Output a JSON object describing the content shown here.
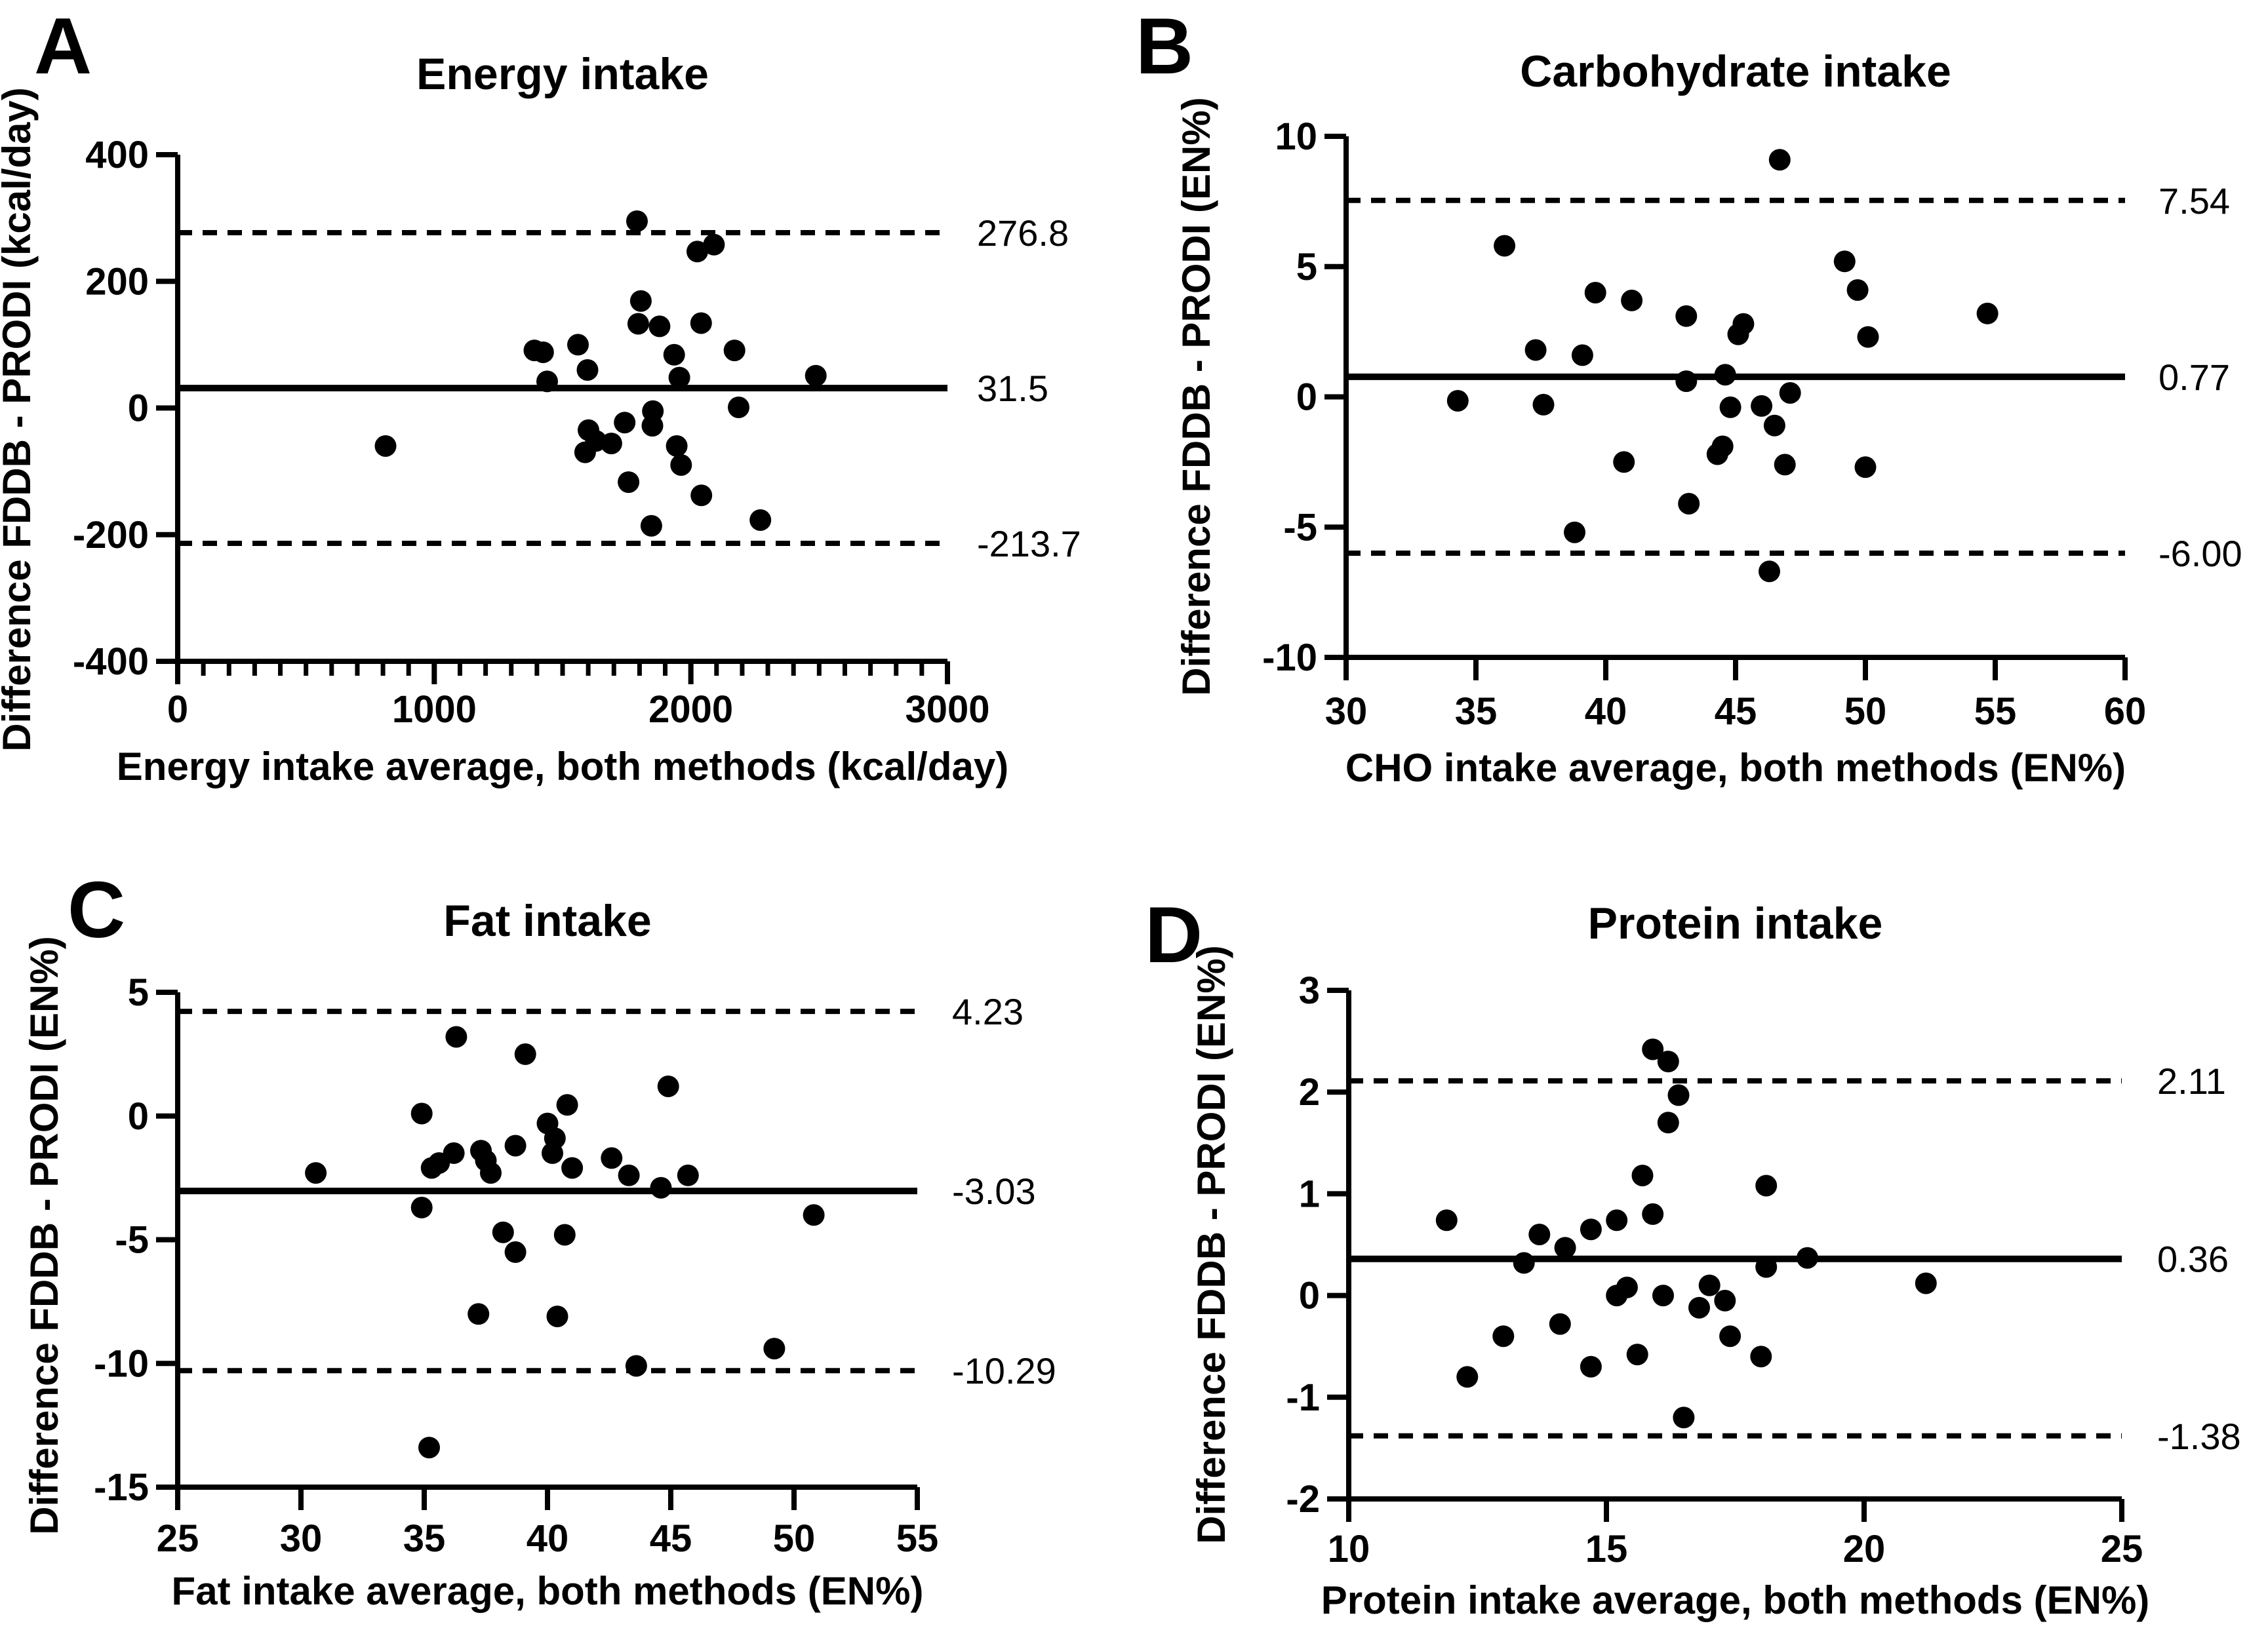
{
  "figure": {
    "background": "#ffffff",
    "ink_color": "#000000",
    "description": "Bland-Altman agreement plots, FDDB vs PRODI dietary assessment methods"
  },
  "chart_data": [
    {
      "type": "scatter",
      "panel": "A",
      "title": "Energy intake",
      "xlabel": "Energy intake average, both methods (kcal/day)",
      "ylabel": "Difference FDDB - PRODI (kcal/day)",
      "xlim": [
        0,
        3000
      ],
      "ylim": [
        -400,
        400
      ],
      "xticks": [
        "0",
        "1000",
        "2000",
        "3000"
      ],
      "yticks": [
        "400",
        "200",
        "0",
        "-200",
        "-400"
      ],
      "xminor_step": 100,
      "grid": false,
      "legend": "none",
      "bias": 31.5,
      "upper_loa": 276.8,
      "lower_loa": -213.7,
      "bias_label": "31.5",
      "upper_loa_label": "276.8",
      "lower_loa_label": "-213.7",
      "points": [
        [
          1790,
          295
        ],
        [
          2025,
          247
        ],
        [
          2090,
          258
        ],
        [
          1805,
          169
        ],
        [
          1795,
          133
        ],
        [
          1878,
          129
        ],
        [
          2040,
          134
        ],
        [
          1390,
          91
        ],
        [
          1424,
          88
        ],
        [
          1560,
          100
        ],
        [
          1935,
          84
        ],
        [
          2170,
          91
        ],
        [
          1597,
          60
        ],
        [
          1440,
          42
        ],
        [
          1955,
          48
        ],
        [
          2487,
          51
        ],
        [
          1852,
          -5
        ],
        [
          1850,
          -28
        ],
        [
          2186,
          1
        ],
        [
          1601,
          -35
        ],
        [
          1742,
          -23
        ],
        [
          1630,
          -52
        ],
        [
          1690,
          -56
        ],
        [
          810,
          -60
        ],
        [
          1588,
          -70
        ],
        [
          1945,
          -60
        ],
        [
          1962,
          -90
        ],
        [
          1757,
          -117
        ],
        [
          2041,
          -138
        ],
        [
          1846,
          -186
        ],
        [
          2271,
          -177
        ]
      ]
    },
    {
      "type": "scatter",
      "panel": "B",
      "title": "Carbohydrate intake",
      "xlabel": "CHO intake average, both methods (EN%)",
      "ylabel": "Difference FDDB - PRODI (EN%)",
      "xlim": [
        30,
        60
      ],
      "ylim": [
        -10,
        10
      ],
      "xticks": [
        "30",
        "35",
        "40",
        "45",
        "50",
        "55",
        "60"
      ],
      "yticks": [
        "10",
        "5",
        "0",
        "-5",
        "-10"
      ],
      "xminor_step": 0,
      "grid": false,
      "legend": "none",
      "bias": 0.77,
      "upper_loa": 7.54,
      "lower_loa": -6.0,
      "bias_label": "0.77",
      "upper_loa_label": "7.54",
      "lower_loa_label": "-6.00",
      "points": [
        [
          46.7,
          9.1
        ],
        [
          36.1,
          5.8
        ],
        [
          49.2,
          5.2
        ],
        [
          49.7,
          4.1
        ],
        [
          39.6,
          4.0
        ],
        [
          41.0,
          3.7
        ],
        [
          54.7,
          3.2
        ],
        [
          43.1,
          3.1
        ],
        [
          45.3,
          2.8
        ],
        [
          45.1,
          2.4
        ],
        [
          50.1,
          2.3
        ],
        [
          37.3,
          1.8
        ],
        [
          39.1,
          1.6
        ],
        [
          44.6,
          0.85
        ],
        [
          43.1,
          0.6
        ],
        [
          47.1,
          0.15
        ],
        [
          34.3,
          -0.15
        ],
        [
          37.6,
          -0.3
        ],
        [
          46.0,
          -0.35
        ],
        [
          44.8,
          -0.4
        ],
        [
          46.5,
          -1.1
        ],
        [
          44.5,
          -1.9
        ],
        [
          44.3,
          -2.2
        ],
        [
          40.7,
          -2.5
        ],
        [
          46.9,
          -2.6
        ],
        [
          50.0,
          -2.7
        ],
        [
          43.2,
          -4.1
        ],
        [
          38.8,
          -5.2
        ],
        [
          46.3,
          -6.7
        ]
      ]
    },
    {
      "type": "scatter",
      "panel": "C",
      "title": "Fat intake",
      "xlabel": "Fat intake average, both methods (EN%)",
      "ylabel": "Difference FDDB - PRODI (EN%)",
      "xlim": [
        25,
        55
      ],
      "ylim": [
        -15,
        5
      ],
      "xticks": [
        "25",
        "30",
        "35",
        "40",
        "45",
        "50",
        "55"
      ],
      "yticks": [
        "5",
        "0",
        "-5",
        "-10",
        "-15"
      ],
      "xminor_step": 0,
      "grid": false,
      "legend": "none",
      "bias": -3.03,
      "upper_loa": 4.23,
      "lower_loa": -10.29,
      "bias_label": "-3.03",
      "upper_loa_label": "4.23",
      "lower_loa_label": "-10.29",
      "points": [
        [
          36.3,
          3.2
        ],
        [
          39.1,
          2.5
        ],
        [
          44.9,
          1.2
        ],
        [
          40.8,
          0.45
        ],
        [
          34.9,
          0.1
        ],
        [
          40.0,
          -0.3
        ],
        [
          40.3,
          -0.9
        ],
        [
          38.7,
          -1.2
        ],
        [
          37.3,
          -1.4
        ],
        [
          36.2,
          -1.5
        ],
        [
          40.2,
          -1.5
        ],
        [
          37.5,
          -1.8
        ],
        [
          35.6,
          -1.9
        ],
        [
          42.6,
          -1.7
        ],
        [
          35.3,
          -2.1
        ],
        [
          41.0,
          -2.1
        ],
        [
          37.7,
          -2.3
        ],
        [
          43.3,
          -2.4
        ],
        [
          30.6,
          -2.3
        ],
        [
          45.7,
          -2.4
        ],
        [
          44.6,
          -2.9
        ],
        [
          34.9,
          -3.7
        ],
        [
          50.8,
          -4.0
        ],
        [
          38.2,
          -4.7
        ],
        [
          40.7,
          -4.8
        ],
        [
          38.7,
          -5.5
        ],
        [
          37.2,
          -8.0
        ],
        [
          40.4,
          -8.1
        ],
        [
          49.2,
          -9.4
        ],
        [
          43.6,
          -10.1
        ],
        [
          35.2,
          -13.4
        ]
      ]
    },
    {
      "type": "scatter",
      "panel": "D",
      "title": "Protein intake",
      "xlabel": "Protein intake average, both methods (EN%)",
      "ylabel": "Difference FDDB - PRODI (EN%)",
      "xlim": [
        10,
        25
      ],
      "ylim": [
        -2,
        3
      ],
      "xticks": [
        "10",
        "15",
        "20",
        "25"
      ],
      "yticks": [
        "3",
        "2",
        "1",
        "0",
        "-1",
        "-2"
      ],
      "xminor_step": 0,
      "grid": false,
      "legend": "none",
      "bias": 0.36,
      "upper_loa": 2.11,
      "lower_loa": -1.38,
      "bias_label": "0.36",
      "upper_loa_label": "2.11",
      "lower_loa_label": "-1.38",
      "points": [
        [
          15.9,
          2.42
        ],
        [
          16.2,
          2.3
        ],
        [
          16.4,
          1.97
        ],
        [
          16.2,
          1.7
        ],
        [
          15.7,
          1.18
        ],
        [
          18.1,
          1.08
        ],
        [
          15.9,
          0.8
        ],
        [
          11.9,
          0.74
        ],
        [
          15.2,
          0.74
        ],
        [
          14.7,
          0.65
        ],
        [
          13.7,
          0.6
        ],
        [
          14.2,
          0.47
        ],
        [
          18.9,
          0.37
        ],
        [
          13.4,
          0.32
        ],
        [
          18.1,
          0.28
        ],
        [
          15.4,
          0.08
        ],
        [
          21.2,
          0.12
        ],
        [
          15.2,
          0.0
        ],
        [
          16.1,
          0.0
        ],
        [
          17.0,
          0.1
        ],
        [
          17.3,
          -0.05
        ],
        [
          16.8,
          -0.12
        ],
        [
          14.1,
          -0.28
        ],
        [
          13.0,
          -0.4
        ],
        [
          17.4,
          -0.4
        ],
        [
          15.6,
          -0.58
        ],
        [
          18.0,
          -0.6
        ],
        [
          14.7,
          -0.7
        ],
        [
          12.3,
          -0.8
        ],
        [
          16.5,
          -1.2
        ]
      ]
    }
  ]
}
